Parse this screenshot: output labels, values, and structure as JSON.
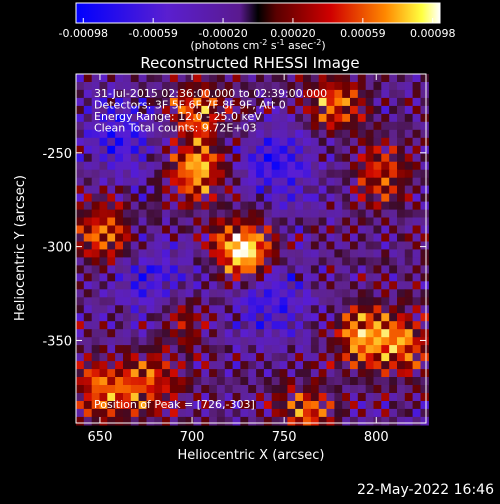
{
  "chart_data": {
    "type": "heatmap",
    "title": "Reconstructed RHESSI Image",
    "xlabel": "Heliocentric X (arcsec)",
    "ylabel": "Heliocentric Y (arcsec)",
    "xlim": [
      637,
      827
    ],
    "ylim": [
      -394,
      -208
    ],
    "xticks": [
      650,
      700,
      750,
      800
    ],
    "yticks": [
      -250,
      -300,
      -350
    ],
    "colorbar": {
      "ticks": [
        "-0.00098",
        "-0.00059",
        "-0.00020",
        "0.00020",
        "0.00059",
        "0.00098"
      ],
      "range": [
        -0.00098,
        0.00098
      ],
      "units_line": "(photons cm",
      "units_sup1": "-2",
      "units_mid": " s",
      "units_sup2": "-1",
      "units_mid2": " asec",
      "units_sup3": "-2",
      "units_end": ")"
    },
    "annotations": [
      "31-Jul-2015 02:36:00.000 to 02:39:00.000",
      "Detectors: 3F 5F 6F 7F 8F 9F, Att 0",
      "Energy Range: 12.0 - 25.0 keV",
      "Clean     Total counts: 9.72E+03"
    ],
    "peak_label": "Position of Peak = [726,-303]",
    "peak": [
      726,
      -303
    ],
    "sources": [
      {
        "x": 726,
        "y": -300,
        "amp": 1.0
      },
      {
        "x": 700,
        "y": -257,
        "amp": 0.7
      },
      {
        "x": 700,
        "y": -225,
        "amp": 0.55
      },
      {
        "x": 650,
        "y": -290,
        "amp": 0.6
      },
      {
        "x": 650,
        "y": -375,
        "amp": 0.55
      },
      {
        "x": 675,
        "y": -372,
        "amp": 0.5
      },
      {
        "x": 790,
        "y": -345,
        "amp": 0.6
      },
      {
        "x": 812,
        "y": -350,
        "amp": 0.55
      },
      {
        "x": 775,
        "y": -222,
        "amp": 0.55
      },
      {
        "x": 800,
        "y": -260,
        "amp": 0.45
      },
      {
        "x": 760,
        "y": -385,
        "amp": 0.45
      },
      {
        "x": 690,
        "y": -335,
        "amp": 0.45
      }
    ],
    "negative_regions": [
      {
        "x": 680,
        "y": -320
      },
      {
        "x": 740,
        "y": -325
      },
      {
        "x": 745,
        "y": -255
      },
      {
        "x": 660,
        "y": -240
      }
    ]
  },
  "footer_date": "22-May-2022 16:46"
}
